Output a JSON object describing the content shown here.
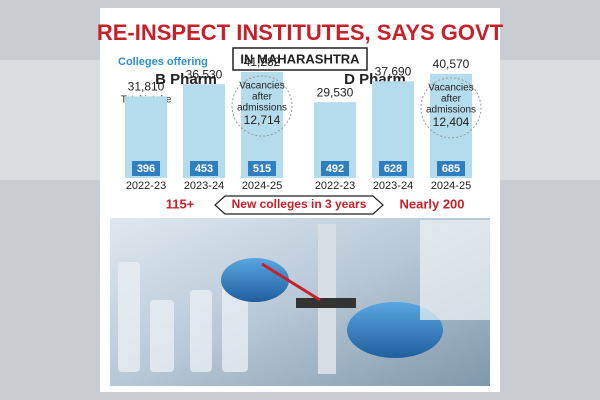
{
  "title": "RE-INSPECT INSTITUTES, SAYS GOVT",
  "subtitle": "IN MAHARASHTRA",
  "legend": "Colleges offering",
  "chart_data": [
    {
      "type": "bar",
      "title": "B Pharm",
      "annotation": "Total intake",
      "color": "#b5dcec",
      "categories": [
        "2022-23",
        "2023-24",
        "2024-25"
      ],
      "values": [
        31810,
        36530,
        41282
      ],
      "value_labels": [
        "31,810",
        "36,530",
        "41,282"
      ],
      "colleges": [
        396,
        453,
        515
      ],
      "vacancy_label_lines": [
        "Vacancies",
        "after",
        "admissions"
      ],
      "vacancies": 12714,
      "vacancies_label": "12,714"
    },
    {
      "type": "bar",
      "title": "D Pharm",
      "color": "#b5dcec",
      "categories": [
        "2022-23",
        "2023-24",
        "2024-25"
      ],
      "values": [
        29530,
        37690,
        40570
      ],
      "value_labels": [
        "29,530",
        "37,690",
        "40,570"
      ],
      "colleges": [
        492,
        628,
        685
      ],
      "vacancy_label_lines": [
        "Vacancies",
        "after",
        "admissions"
      ],
      "vacancies": 12404,
      "vacancies_label": "12,404"
    }
  ],
  "footer": {
    "left": "115+",
    "middle": "New colleges in 3 years",
    "right": "Nearly 200"
  }
}
